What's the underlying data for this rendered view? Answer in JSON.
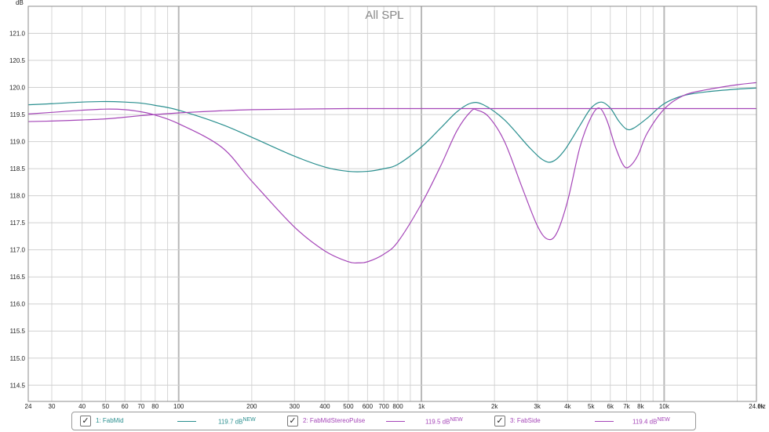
{
  "chart_data": {
    "type": "line",
    "title": "All SPL",
    "ylabel": "dB",
    "xlabel": "Hz",
    "x_scale": "log",
    "xlim": [
      24,
      24000
    ],
    "ylim": [
      114.2,
      121.5
    ],
    "grid": true,
    "legend_position": "bottom",
    "y_ticks": [
      "114.5",
      "115.0",
      "115.5",
      "116.0",
      "116.5",
      "117.0",
      "117.5",
      "118.0",
      "118.5",
      "119.0",
      "119.5",
      "120.0",
      "120.5",
      "121.0"
    ],
    "x_ticks": [
      {
        "value": 24,
        "label": "24"
      },
      {
        "value": 30,
        "label": "30"
      },
      {
        "value": 40,
        "label": "40"
      },
      {
        "value": 50,
        "label": "50"
      },
      {
        "value": 60,
        "label": "60"
      },
      {
        "value": 70,
        "label": "70"
      },
      {
        "value": 80,
        "label": "80"
      },
      {
        "value": 100,
        "label": "100"
      },
      {
        "value": 200,
        "label": "200"
      },
      {
        "value": 300,
        "label": "300"
      },
      {
        "value": 400,
        "label": "400"
      },
      {
        "value": 500,
        "label": "500"
      },
      {
        "value": 600,
        "label": "600"
      },
      {
        "value": 700,
        "label": "700"
      },
      {
        "value": 800,
        "label": "800"
      },
      {
        "value": 1000,
        "label": "1k"
      },
      {
        "value": 2000,
        "label": "2k"
      },
      {
        "value": 3000,
        "label": "3k"
      },
      {
        "value": 4000,
        "label": "4k"
      },
      {
        "value": 5000,
        "label": "5k"
      },
      {
        "value": 6000,
        "label": "6k"
      },
      {
        "value": 7000,
        "label": "7k"
      },
      {
        "value": 8000,
        "label": "8k"
      },
      {
        "value": 10000,
        "label": "10k"
      },
      {
        "value": 24000,
        "label": "24.0k"
      }
    ],
    "series": [
      {
        "name": "1: FabMid",
        "color": "#2a8f8f",
        "points": [
          [
            24,
            119.68
          ],
          [
            30,
            119.7
          ],
          [
            40,
            119.73
          ],
          [
            50,
            119.74
          ],
          [
            60,
            119.73
          ],
          [
            70,
            119.71
          ],
          [
            80,
            119.67
          ],
          [
            100,
            119.58
          ],
          [
            150,
            119.32
          ],
          [
            200,
            119.08
          ],
          [
            300,
            118.73
          ],
          [
            400,
            118.53
          ],
          [
            500,
            118.45
          ],
          [
            600,
            118.45
          ],
          [
            700,
            118.5
          ],
          [
            800,
            118.58
          ],
          [
            1000,
            118.9
          ],
          [
            1200,
            119.25
          ],
          [
            1400,
            119.55
          ],
          [
            1600,
            119.71
          ],
          [
            1800,
            119.68
          ],
          [
            2200,
            119.4
          ],
          [
            2800,
            118.88
          ],
          [
            3200,
            118.65
          ],
          [
            3500,
            118.64
          ],
          [
            3900,
            118.85
          ],
          [
            4500,
            119.3
          ],
          [
            5000,
            119.62
          ],
          [
            5500,
            119.73
          ],
          [
            6000,
            119.62
          ],
          [
            6500,
            119.38
          ],
          [
            7000,
            119.23
          ],
          [
            7500,
            119.25
          ],
          [
            8500,
            119.43
          ],
          [
            10000,
            119.7
          ],
          [
            12000,
            119.85
          ],
          [
            15000,
            119.92
          ],
          [
            20000,
            119.97
          ],
          [
            24000,
            119.99
          ]
        ]
      },
      {
        "name": "2: FabMidStereoPulse",
        "color": "#a546b8",
        "points": [
          [
            24,
            119.51
          ],
          [
            30,
            119.54
          ],
          [
            40,
            119.58
          ],
          [
            50,
            119.6
          ],
          [
            60,
            119.59
          ],
          [
            70,
            119.55
          ],
          [
            80,
            119.49
          ],
          [
            100,
            119.33
          ],
          [
            150,
            118.9
          ],
          [
            200,
            118.27
          ],
          [
            300,
            117.42
          ],
          [
            400,
            116.98
          ],
          [
            500,
            116.78
          ],
          [
            550,
            116.76
          ],
          [
            600,
            116.78
          ],
          [
            700,
            116.92
          ],
          [
            800,
            117.15
          ],
          [
            1000,
            117.85
          ],
          [
            1200,
            118.55
          ],
          [
            1400,
            119.2
          ],
          [
            1600,
            119.56
          ],
          [
            1700,
            119.58
          ],
          [
            1900,
            119.45
          ],
          [
            2200,
            119.0
          ],
          [
            2600,
            118.15
          ],
          [
            3000,
            117.45
          ],
          [
            3300,
            117.2
          ],
          [
            3600,
            117.3
          ],
          [
            4000,
            117.9
          ],
          [
            4500,
            118.9
          ],
          [
            5000,
            119.45
          ],
          [
            5400,
            119.62
          ],
          [
            5800,
            119.4
          ],
          [
            6300,
            118.9
          ],
          [
            6800,
            118.56
          ],
          [
            7200,
            118.54
          ],
          [
            7800,
            118.75
          ],
          [
            8500,
            119.15
          ],
          [
            10000,
            119.6
          ],
          [
            12000,
            119.85
          ],
          [
            15000,
            119.96
          ],
          [
            20000,
            120.05
          ],
          [
            24000,
            120.09
          ]
        ]
      },
      {
        "name": "3: FabSide",
        "color": "#a546b8",
        "points": [
          [
            24,
            119.37
          ],
          [
            30,
            119.38
          ],
          [
            40,
            119.4
          ],
          [
            50,
            119.42
          ],
          [
            60,
            119.45
          ],
          [
            70,
            119.48
          ],
          [
            80,
            119.5
          ],
          [
            100,
            119.53
          ],
          [
            150,
            119.57
          ],
          [
            200,
            119.59
          ],
          [
            300,
            119.6
          ],
          [
            500,
            119.61
          ],
          [
            1000,
            119.61
          ],
          [
            2000,
            119.61
          ],
          [
            5000,
            119.61
          ],
          [
            10000,
            119.61
          ],
          [
            24000,
            119.61
          ]
        ]
      }
    ]
  },
  "legend": [
    {
      "check": "✓",
      "name": "1: FabMid",
      "value": "119.7 dB",
      "badge": "NEW",
      "color": "#2a8f8f"
    },
    {
      "check": "✓",
      "name": "2: FabMidStereoPulse",
      "value": "119.5 dB",
      "badge": "NEW",
      "color": "#a546b8"
    },
    {
      "check": "✓",
      "name": "3: FabSide",
      "value": "119.4 dB",
      "badge": "NEW",
      "color": "#a546b8"
    }
  ]
}
